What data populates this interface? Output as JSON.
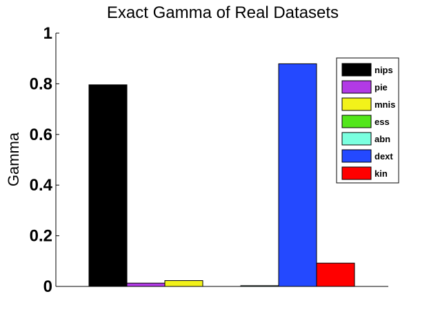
{
  "chart_data": {
    "type": "bar",
    "title": "Exact Gamma of Real Datasets",
    "xlabel": "",
    "ylabel": "Gamma",
    "ylim": [
      0,
      1
    ],
    "yticks": [
      0,
      0.2,
      0.4,
      0.6,
      0.8,
      1
    ],
    "ytick_labels": [
      "0",
      "0.2",
      "0.4",
      "0.6",
      "0.8",
      "1"
    ],
    "grid": false,
    "legend_position": "top-right",
    "series": [
      {
        "name": "nips",
        "value": 0.796,
        "color": "#000000"
      },
      {
        "name": "pie",
        "value": 0.013,
        "color": "#b23ae6"
      },
      {
        "name": "mnis",
        "value": 0.023,
        "color": "#f2f21a"
      },
      {
        "name": "ess",
        "value": 0.0,
        "color": "#52e61a"
      },
      {
        "name": "abn",
        "value": 0.003,
        "color": "#7affdf"
      },
      {
        "name": "dext",
        "value": 0.879,
        "color": "#2449ff"
      },
      {
        "name": "kin",
        "value": 0.092,
        "color": "#ff0000"
      }
    ]
  }
}
